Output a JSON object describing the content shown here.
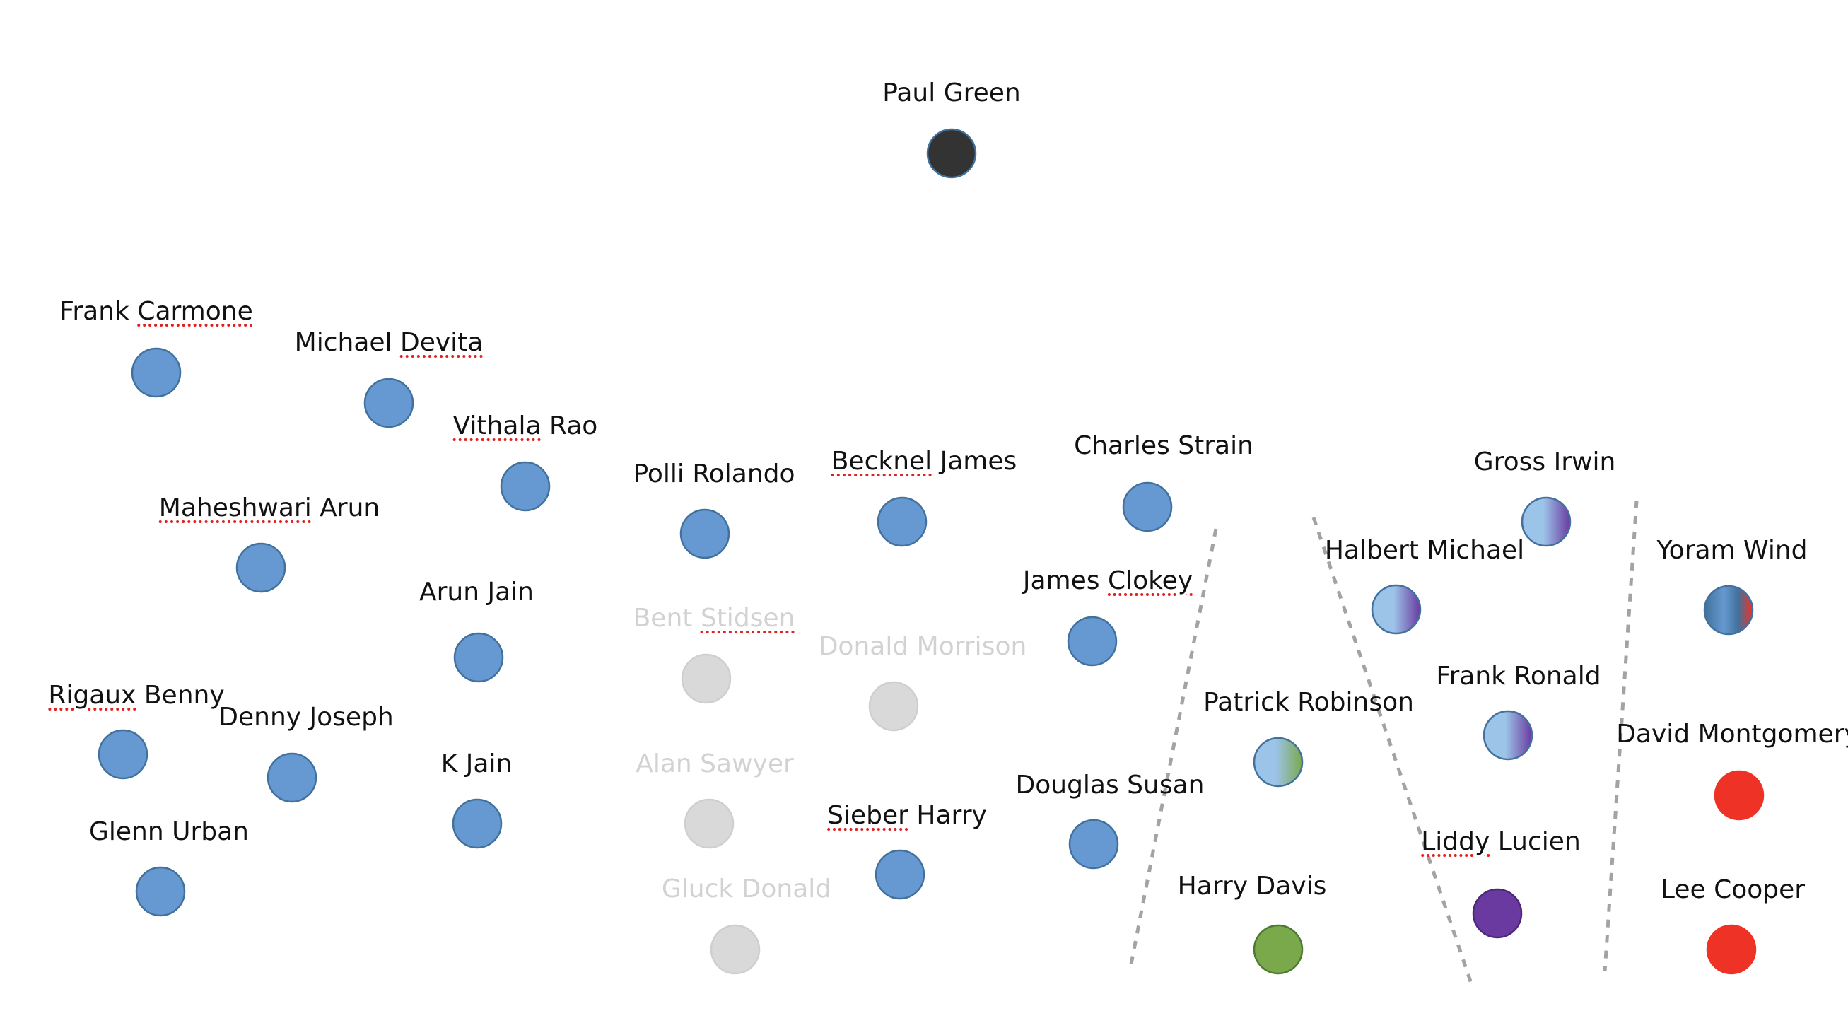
{
  "colors": {
    "blue": "#6699d1",
    "blue_border": "#41719c",
    "grey": "#d9d9d9",
    "grey_border": "#cfcfcf",
    "dark": "#333333",
    "green": "#7aa94c",
    "green_border": "#4e7a2f",
    "purple": "#6a3aa0",
    "purple_border": "#4d2a78",
    "red": "#ee3226",
    "light_blue": "#9cc3e8",
    "label": "#111111",
    "faded_label": "#d2d2d2",
    "divider": "#a3a3a3",
    "spell_underline": "#e02020"
  },
  "nodes": [
    {
      "id": "paul-green",
      "parts": [
        {
          "text": "Paul Green"
        }
      ],
      "style": "dark",
      "faded": false
    },
    {
      "id": "frank-carmone",
      "parts": [
        {
          "text": "Frank "
        },
        {
          "text": "Carmone",
          "sq": true
        }
      ],
      "style": "blue",
      "faded": false
    },
    {
      "id": "michael-devita",
      "parts": [
        {
          "text": "Michael "
        },
        {
          "text": "Devita",
          "sq": true
        }
      ],
      "style": "blue",
      "faded": false
    },
    {
      "id": "vithala-rao",
      "parts": [
        {
          "text": "Vithala",
          "sq": true
        },
        {
          "text": " Rao"
        }
      ],
      "style": "blue",
      "faded": false
    },
    {
      "id": "maheshwari-arun",
      "parts": [
        {
          "text": "Maheshwari",
          "sq": true
        },
        {
          "text": " Arun"
        }
      ],
      "style": "blue",
      "faded": false
    },
    {
      "id": "polli-rolando",
      "parts": [
        {
          "text": "Polli Rolando"
        }
      ],
      "style": "blue",
      "faded": false
    },
    {
      "id": "becknel-james",
      "parts": [
        {
          "text": "Becknel",
          "sq": true
        },
        {
          "text": " James"
        }
      ],
      "style": "blue",
      "faded": false
    },
    {
      "id": "charles-strain",
      "parts": [
        {
          "text": "Charles Strain"
        }
      ],
      "style": "blue",
      "faded": false
    },
    {
      "id": "arun-jain",
      "parts": [
        {
          "text": "Arun Jain"
        }
      ],
      "style": "blue",
      "faded": false
    },
    {
      "id": "james-clokey",
      "parts": [
        {
          "text": "James "
        },
        {
          "text": "Clokey",
          "sq": true
        }
      ],
      "style": "blue",
      "faded": false
    },
    {
      "id": "rigaux-benny",
      "parts": [
        {
          "text": "Rigaux",
          "sq": true
        },
        {
          "text": " Benny"
        }
      ],
      "style": "blue",
      "faded": false
    },
    {
      "id": "denny-joseph",
      "parts": [
        {
          "text": "Denny Joseph"
        }
      ],
      "style": "blue",
      "faded": false
    },
    {
      "id": "k-jain",
      "parts": [
        {
          "text": "K Jain"
        }
      ],
      "style": "blue",
      "faded": false
    },
    {
      "id": "glenn-urban",
      "parts": [
        {
          "text": "Glenn Urban"
        }
      ],
      "style": "blue",
      "faded": false
    },
    {
      "id": "sieber-harry",
      "parts": [
        {
          "text": "Sieber",
          "sq": true
        },
        {
          "text": " Harry"
        }
      ],
      "style": "blue",
      "faded": false
    },
    {
      "id": "douglas-susan",
      "parts": [
        {
          "text": "Douglas Susan"
        }
      ],
      "style": "blue",
      "faded": false
    },
    {
      "id": "bent-stidsen",
      "parts": [
        {
          "text": "Bent "
        },
        {
          "text": "Stidsen",
          "sq": true
        }
      ],
      "style": "grey",
      "faded": true
    },
    {
      "id": "donald-morrison",
      "parts": [
        {
          "text": "Donald Morrison"
        }
      ],
      "style": "grey",
      "faded": true
    },
    {
      "id": "alan-sawyer",
      "parts": [
        {
          "text": "Alan Sawyer"
        }
      ],
      "style": "grey",
      "faded": true
    },
    {
      "id": "gluck-donald",
      "parts": [
        {
          "text": "Gluck Donald"
        }
      ],
      "style": "grey",
      "faded": true
    },
    {
      "id": "patrick-robinson",
      "parts": [
        {
          "text": "Patrick Robinson"
        }
      ],
      "style": "blue-green",
      "faded": false
    },
    {
      "id": "harry-davis",
      "parts": [
        {
          "text": "Harry Davis"
        }
      ],
      "style": "green",
      "faded": false
    },
    {
      "id": "gross-irwin",
      "parts": [
        {
          "text": "Gross Irwin"
        }
      ],
      "style": "blue-purple",
      "faded": false
    },
    {
      "id": "halbert-michael",
      "parts": [
        {
          "text": "Halbert Michael"
        }
      ],
      "style": "blue-purple",
      "faded": false
    },
    {
      "id": "frank-ronald",
      "parts": [
        {
          "text": "Frank Ronald"
        }
      ],
      "style": "blue-purple",
      "faded": false
    },
    {
      "id": "liddy-lucien",
      "parts": [
        {
          "text": "Liddy",
          "sq": true
        },
        {
          "text": " Lucien"
        }
      ],
      "style": "purple",
      "faded": false
    },
    {
      "id": "yoram-wind",
      "parts": [
        {
          "text": "Yoram Wind"
        }
      ],
      "style": "blue-red",
      "faded": false
    },
    {
      "id": "david-montgomery",
      "parts": [
        {
          "text": "David Montgomery"
        }
      ],
      "style": "red",
      "faded": false
    },
    {
      "id": "lee-cooper",
      "parts": [
        {
          "text": "Lee Cooper"
        }
      ],
      "style": "red",
      "faded": false
    }
  ]
}
